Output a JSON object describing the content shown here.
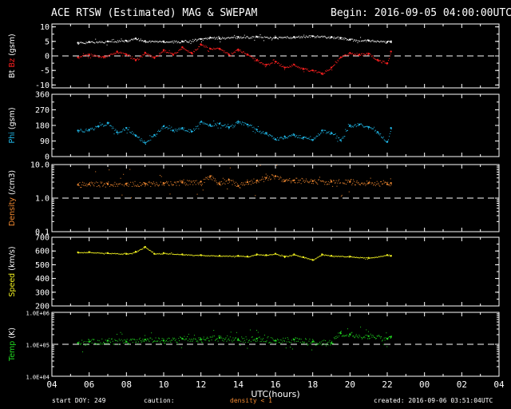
{
  "header": {
    "title": "ACE RTSW (Estimated) MAG & SWEPAM",
    "begin": "Begin: 2016-09-05 04:00:00UTC"
  },
  "footer": {
    "start_doy": "start DOY: 249",
    "caution": "caution:",
    "density_note": "density < 1",
    "created": "created: 2016-09-06 03:51:04UTC"
  },
  "colors": {
    "background": "#000000",
    "axes": "#ffffff",
    "bt": "#ffffff",
    "bz": "#ff2020",
    "phi": "#20b8e8",
    "density": "#f08830",
    "speed": "#f0f020",
    "temp": "#20d820",
    "caution": "#f08830"
  },
  "chart_data": {
    "type": "scatter",
    "xlabel": "UTC(hours)",
    "x_range_hours": [
      4,
      28
    ],
    "x_tick_labels": [
      "04",
      "06",
      "08",
      "10",
      "12",
      "14",
      "16",
      "18",
      "20",
      "22",
      "00",
      "02",
      "04"
    ],
    "panels": [
      {
        "key": "mag",
        "ylabel_parts": [
          {
            "text": "Bt",
            "color": "#ffffff"
          },
          {
            "text": "Bz",
            "color": "#ff2020"
          },
          {
            "text": "(gsm)",
            "color": "#ffffff"
          }
        ],
        "scale": "linear",
        "ylim": [
          -11,
          11
        ],
        "ticks": [
          10,
          5,
          0,
          -5,
          -10
        ],
        "tick_labels": [
          "10",
          "5",
          "0",
          "-5",
          "-10"
        ],
        "dashed_ref": 0,
        "series": [
          {
            "name": "Bt",
            "color": "#ffffff",
            "x": [
              5.4,
              6,
              7,
              8,
              8.5,
              9,
              10,
              11,
              12,
              12.5,
              13,
              14,
              15,
              16,
              17,
              18,
              19,
              19.5,
              20,
              21,
              22,
              22.2
            ],
            "y": [
              4.5,
              4.8,
              5,
              5.2,
              6,
              5.1,
              5,
              5,
              5.8,
              6.3,
              6.1,
              6.5,
              6.6,
              6.3,
              6.5,
              6.8,
              6.5,
              6.2,
              5.6,
              5.3,
              4.8,
              5
            ]
          },
          {
            "name": "Bz",
            "color": "#ff2020",
            "x": [
              5.4,
              6,
              6.8,
              7.5,
              8,
              8.5,
              9,
              9.5,
              10,
              10.5,
              11,
              11.5,
              12,
              12.5,
              13,
              13.5,
              14,
              14.5,
              15,
              15.5,
              16,
              16.5,
              17,
              17.5,
              18,
              18.5,
              19,
              19.5,
              20,
              20.5,
              21,
              21.5,
              22,
              22.2
            ],
            "y": [
              -0.5,
              0.5,
              -0.3,
              1.5,
              0.5,
              -1.5,
              1,
              -0.5,
              2,
              0.5,
              3,
              1,
              4,
              2.5,
              2.5,
              0.5,
              2.2,
              0.5,
              -1.5,
              -3,
              -2,
              -4,
              -3,
              -4.5,
              -5,
              -6,
              -4,
              -0.5,
              1,
              0.5,
              0.8,
              -1.5,
              -2.5,
              1.5
            ]
          }
        ]
      },
      {
        "key": "phi",
        "ylabel_parts": [
          {
            "text": "Phi",
            "color": "#20b8e8"
          },
          {
            "text": "(gsm)",
            "color": "#ffffff"
          }
        ],
        "scale": "linear",
        "ylim": [
          0,
          360
        ],
        "ticks": [
          360,
          270,
          180,
          90,
          0
        ],
        "tick_labels": [
          "360",
          "270",
          "180",
          "90",
          "0"
        ],
        "series": [
          {
            "name": "Phi",
            "color": "#20b8e8",
            "x": [
              5.4,
              6,
              6.5,
              7,
              7.5,
              8,
              8.5,
              9,
              9.5,
              10,
              10.5,
              11,
              11.5,
              12,
              12.5,
              13,
              13.5,
              14,
              14.5,
              15,
              15.5,
              16,
              16.5,
              17,
              17.5,
              18,
              18.5,
              19,
              19.5,
              20,
              20.5,
              21,
              21.5,
              22,
              22.2
            ],
            "y": [
              150,
              155,
              175,
              195,
              140,
              165,
              120,
              80,
              125,
              175,
              150,
              165,
              145,
              200,
              180,
              190,
              170,
              200,
              185,
              155,
              135,
              100,
              115,
              125,
              110,
              95,
              150,
              135,
              95,
              180,
              185,
              170,
              140,
              85,
              165
            ]
          }
        ]
      },
      {
        "key": "density",
        "ylabel_parts": [
          {
            "text": "Density",
            "color": "#f08830"
          },
          {
            "text": "(/cm3)",
            "color": "#ffffff"
          }
        ],
        "scale": "log",
        "ylim": [
          0.1,
          10
        ],
        "ticks": [
          10,
          1,
          0.1
        ],
        "tick_labels": [
          "10.0",
          "1.0",
          "0.1"
        ],
        "dashed_ref": 1,
        "series": [
          {
            "name": "Density",
            "color": "#f08830",
            "x": [
              5.4,
              6,
              7,
              8,
              9,
              10,
              11,
              12,
              12.5,
              13,
              13.5,
              14,
              14.5,
              15,
              15.5,
              16,
              16.5,
              17,
              18,
              19,
              20,
              21,
              22,
              22.2
            ],
            "y": [
              2.5,
              2.6,
              2.6,
              2.7,
              2.7,
              2.8,
              2.9,
              3.1,
              4.5,
              2.6,
              3.5,
              2.3,
              3,
              3.3,
              4,
              4.5,
              3.2,
              3.4,
              3.2,
              3.1,
              3.1,
              2.8,
              2.6,
              2.8
            ]
          }
        ]
      },
      {
        "key": "speed",
        "ylabel_parts": [
          {
            "text": "Speed",
            "color": "#f0f020"
          },
          {
            "text": "(km/s)",
            "color": "#ffffff"
          }
        ],
        "scale": "linear",
        "ylim": [
          200,
          700
        ],
        "ticks": [
          700,
          600,
          500,
          400,
          300,
          200
        ],
        "tick_labels": [
          "700",
          "600",
          "500",
          "400",
          "300",
          "200"
        ],
        "series": [
          {
            "name": "Speed",
            "color": "#f0f020",
            "x": [
              5.4,
              6,
              7,
              8,
              8.5,
              9,
              9.5,
              10,
              11,
              12,
              13,
              14,
              14.5,
              15,
              15.5,
              16,
              16.5,
              17,
              17.5,
              18,
              18.5,
              19,
              20,
              21,
              22,
              22.2
            ],
            "y": [
              590,
              592,
              585,
              580,
              595,
              630,
              580,
              585,
              575,
              570,
              565,
              565,
              560,
              575,
              570,
              580,
              560,
              575,
              555,
              535,
              575,
              565,
              560,
              550,
              570,
              565
            ]
          }
        ]
      },
      {
        "key": "temp",
        "ylabel_parts": [
          {
            "text": "Temp",
            "color": "#20d820"
          },
          {
            "text": "(K)",
            "color": "#ffffff"
          }
        ],
        "scale": "log",
        "ylim": [
          10000,
          1000000
        ],
        "ticks": [
          1000000,
          100000,
          10000
        ],
        "tick_labels": [
          "1.0E+06",
          "1.0E+05",
          "1.0E+04"
        ],
        "dashed_ref": 100000,
        "series": [
          {
            "name": "Temp",
            "color": "#20d820",
            "x": [
              5.4,
              6,
              7,
              8,
              9,
              10,
              11,
              12,
              13,
              14,
              15,
              16,
              17,
              18,
              19,
              19.5,
              20,
              21,
              22,
              22.2
            ],
            "y": [
              110000,
              120000,
              130000,
              120000,
              140000,
              130000,
              150000,
              140000,
              160000,
              140000,
              150000,
              130000,
              140000,
              120000,
              110000,
              220000,
              200000,
              180000,
              150000,
              170000
            ]
          }
        ]
      }
    ]
  }
}
